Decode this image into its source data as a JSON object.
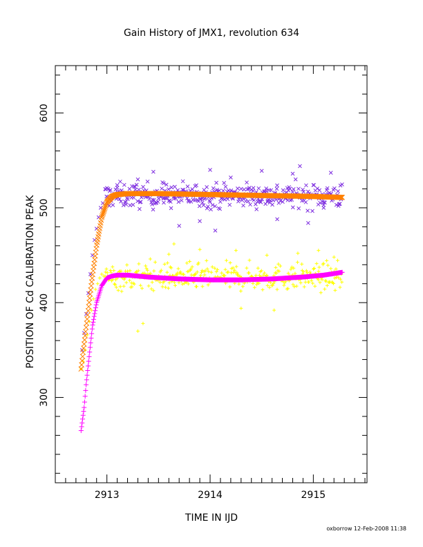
{
  "chart_data": {
    "type": "scatter",
    "title": "Gain History of JMX1, revolution 634",
    "xlabel": "TIME IN IJD",
    "ylabel": "POSITION OF Cd CALIBRATION PEAK",
    "xlim": [
      2912.5,
      2915.52
    ],
    "ylim": [
      210,
      650
    ],
    "x_ticks": [
      2913,
      2914,
      2915
    ],
    "x_tick_labels": [
      "2913",
      "2914",
      "2915"
    ],
    "y_ticks": [
      300,
      400,
      500,
      600
    ],
    "y_tick_labels": [
      "300",
      "400",
      "500",
      "600"
    ],
    "grid": false,
    "legend": "none",
    "footer": "oxborrow 12-Feb-2008 11:38",
    "series": [
      {
        "marker": "x",
        "color": "#7f2fe0",
        "x_start": 2912.98,
        "x_end": 2915.28,
        "level": 513,
        "scatter": 10,
        "x": [
          2913.1,
          2913.3,
          2913.45,
          2913.55,
          2913.7,
          2913.9,
          2914.0,
          2914.05,
          2914.2,
          2914.3,
          2914.5,
          2914.65,
          2914.8,
          2914.87,
          2914.95,
          2915.1,
          2915.17,
          2915.25
        ],
        "values": [
          524,
          530,
          538,
          526,
          481,
          486,
          540,
          476,
          532,
          520,
          539,
          488,
          536,
          544,
          484,
          500,
          537,
          504
        ],
        "ramp_x": [
          2912.76,
          2912.78,
          2912.8,
          2912.82,
          2912.84,
          2912.86,
          2912.88,
          2912.9,
          2912.92,
          2912.94,
          2912.96
        ],
        "ramp_values": [
          350,
          368,
          388,
          410,
          430,
          450,
          466,
          478,
          490,
          500,
          505
        ]
      },
      {
        "marker": "+",
        "color": "#ffff00",
        "x_start": 2912.98,
        "x_end": 2915.28,
        "level": 427,
        "scatter": 11,
        "x": [
          2913.3,
          2913.35,
          2913.42,
          2913.6,
          2913.65,
          2913.9,
          2914.25,
          2914.3,
          2914.55,
          2914.62,
          2914.85,
          2915.05,
          2915.2
        ],
        "values": [
          370,
          378,
          446,
          451,
          462,
          456,
          455,
          394,
          450,
          392,
          452,
          455,
          448
        ],
        "ramp_x": [
          2912.75,
          2912.77,
          2912.79,
          2912.81,
          2912.83,
          2912.85,
          2912.87,
          2912.89,
          2912.91,
          2912.93,
          2912.95,
          2912.97
        ],
        "ramp_values": [
          330,
          338,
          350,
          366,
          380,
          392,
          404,
          414,
          420,
          426,
          430,
          428
        ]
      },
      {
        "marker": "x",
        "color": "#ff8000",
        "fit": true,
        "x": [
          2912.75,
          2912.8,
          2912.85,
          2912.9,
          2912.95,
          2913.0,
          2913.05,
          2913.1,
          2913.2,
          2913.5,
          2914.0,
          2914.5,
          2915.0,
          2915.28
        ],
        "values": [
          330,
          375,
          420,
          460,
          490,
          506,
          512,
          514,
          515,
          515,
          514,
          513,
          512,
          511
        ]
      },
      {
        "marker": "+",
        "color": "#ff00ff",
        "fit": true,
        "x": [
          2912.75,
          2912.78,
          2912.8,
          2912.83,
          2912.86,
          2912.9,
          2912.95,
          2913.0,
          2913.05,
          2913.1,
          2913.2,
          2913.4,
          2913.7,
          2914.0,
          2914.3,
          2914.6,
          2914.9,
          2915.1,
          2915.28
        ],
        "values": [
          265,
          290,
          315,
          345,
          375,
          400,
          418,
          426,
          428,
          429,
          429,
          427,
          425,
          424,
          424,
          425,
          427,
          429,
          432
        ]
      }
    ]
  }
}
